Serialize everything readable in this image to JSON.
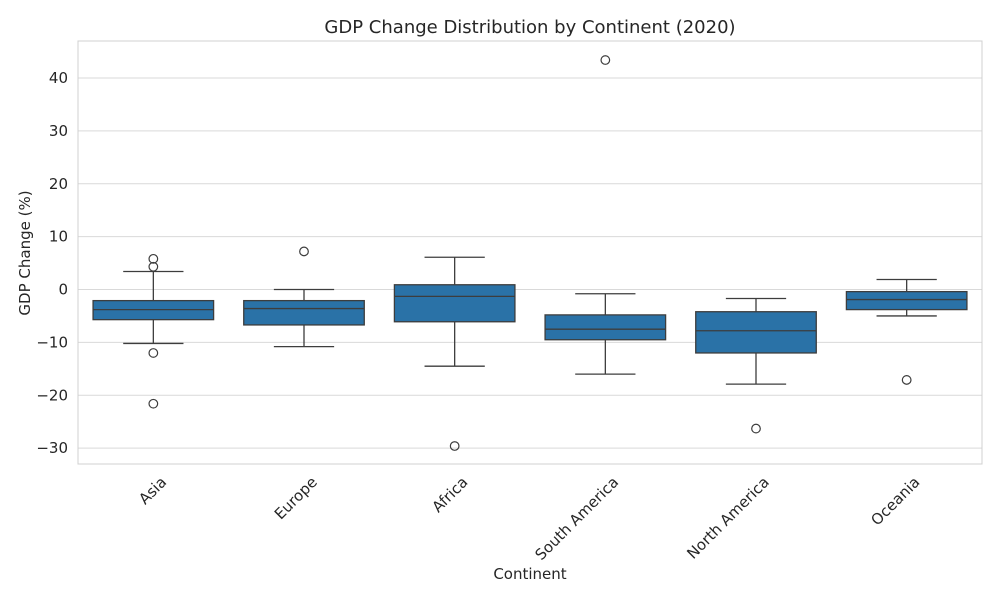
{
  "chart_data": {
    "type": "boxplot",
    "title": "GDP Change Distribution by Continent (2020)",
    "xlabel": "Continent",
    "ylabel": "GDP Change (%)",
    "ylim": [
      -33,
      47
    ],
    "yticks": [
      -30,
      -20,
      -10,
      0,
      10,
      20,
      30,
      40
    ],
    "ytick_labels": [
      "−30",
      "−20",
      "−10",
      "0",
      "10",
      "20",
      "30",
      "40"
    ],
    "grid": true,
    "box_color": "#2a72a7",
    "edge_color": "#3d3d3d",
    "categories": [
      "Asia",
      "Europe",
      "Africa",
      "South America",
      "North America",
      "Oceania"
    ],
    "boxes": [
      {
        "category": "Asia",
        "whisker_low": -10.2,
        "q1": -5.7,
        "median": -3.8,
        "q3": -2.1,
        "whisker_high": 3.4,
        "outliers": [
          5.8,
          4.3,
          -12.0,
          -21.6
        ]
      },
      {
        "category": "Europe",
        "whisker_low": -10.8,
        "q1": -6.7,
        "median": -3.6,
        "q3": -2.1,
        "whisker_high": 0.0,
        "outliers": [
          7.2
        ]
      },
      {
        "category": "Africa",
        "whisker_low": -14.5,
        "q1": -6.1,
        "median": -1.3,
        "q3": 0.9,
        "whisker_high": 6.1,
        "outliers": [
          -29.6
        ]
      },
      {
        "category": "South America",
        "whisker_low": -16.0,
        "q1": -9.5,
        "median": -7.5,
        "q3": -4.8,
        "whisker_high": -0.8,
        "outliers": [
          43.4
        ]
      },
      {
        "category": "North America",
        "whisker_low": -17.9,
        "q1": -12.0,
        "median": -7.8,
        "q3": -4.2,
        "whisker_high": -1.7,
        "outliers": [
          -26.3
        ]
      },
      {
        "category": "Oceania",
        "whisker_low": -5.0,
        "q1": -3.8,
        "median": -1.9,
        "q3": -0.4,
        "whisker_high": 1.9,
        "outliers": [
          -17.1
        ]
      }
    ]
  }
}
